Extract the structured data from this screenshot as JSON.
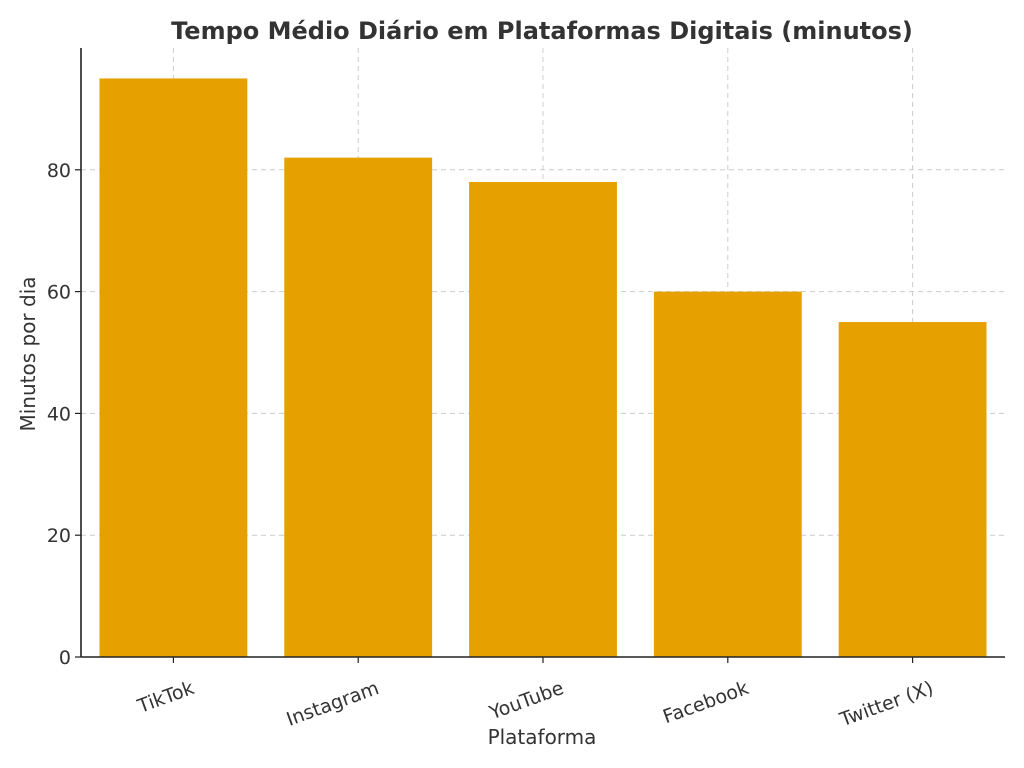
{
  "chart_data": {
    "type": "bar",
    "title": "Tempo Médio Diário em Plataformas Digitais (minutos)",
    "xlabel": "Plataforma",
    "ylabel": "Minutos por dia",
    "categories": [
      "TikTok",
      "Instagram",
      "YouTube",
      "Facebook",
      "Twitter (X)"
    ],
    "values": [
      95,
      82,
      78,
      60,
      55
    ],
    "ylim": [
      0,
      100
    ],
    "yticks": [
      0,
      20,
      40,
      60,
      80
    ],
    "grid": true,
    "bar_color": "#e6a000",
    "axis_color": "#222222",
    "text_color": "#333333"
  }
}
